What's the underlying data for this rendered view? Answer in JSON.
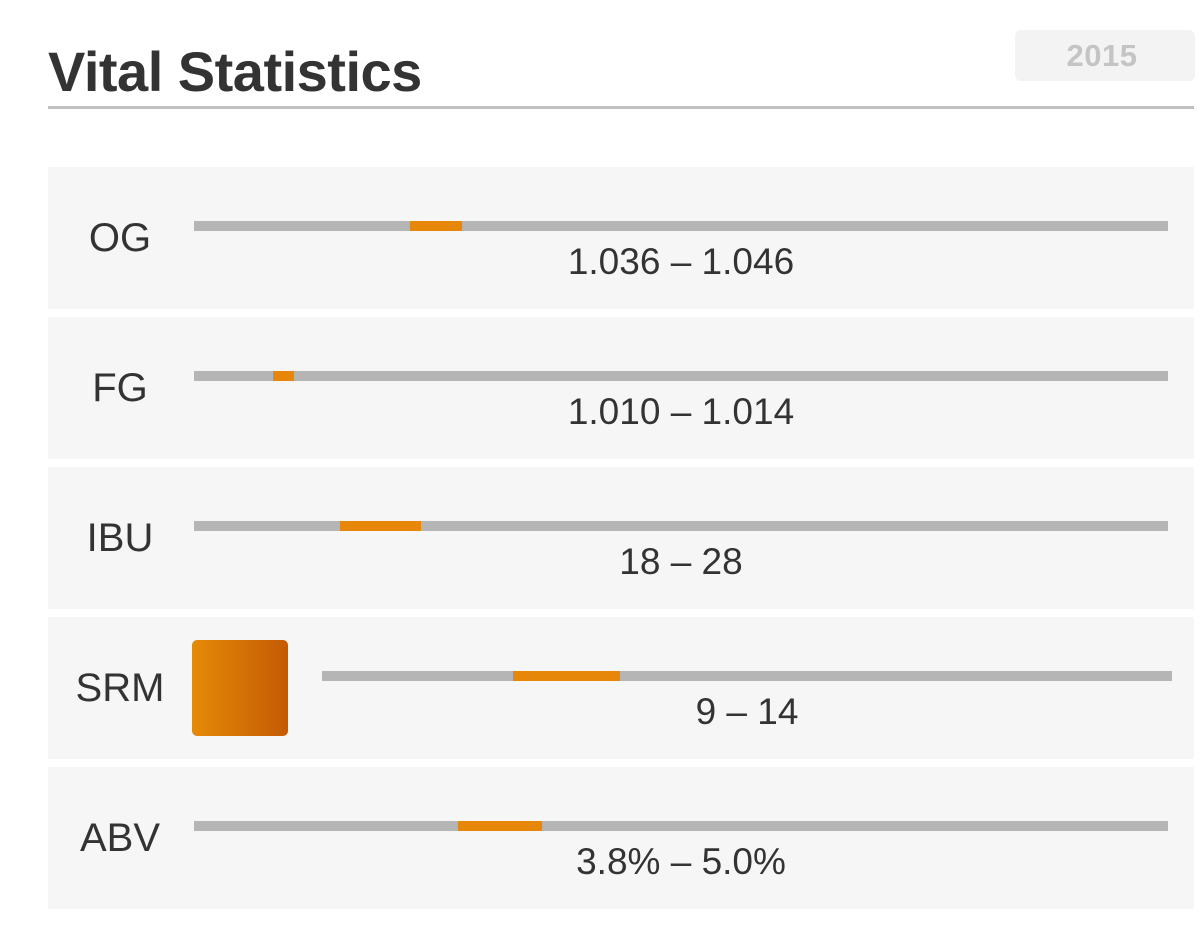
{
  "header": {
    "title": "Vital Statistics",
    "year": "2015"
  },
  "stats": [
    {
      "label": "OG",
      "range_text": "1.036 – 1.046",
      "fill_start_fraction": 0.222,
      "fill_end_fraction": 0.275
    },
    {
      "label": "FG",
      "range_text": "1.010 – 1.014",
      "fill_start_fraction": 0.081,
      "fill_end_fraction": 0.103
    },
    {
      "label": "IBU",
      "range_text": "18 – 28",
      "fill_start_fraction": 0.15,
      "fill_end_fraction": 0.233
    },
    {
      "label": "SRM",
      "range_text": "9 – 14",
      "fill_start_fraction": 0.225,
      "fill_end_fraction": 0.351,
      "swatch_color": "#d9760a"
    },
    {
      "label": "ABV",
      "range_text": "3.8% – 5.0%",
      "fill_start_fraction": 0.271,
      "fill_end_fraction": 0.357
    }
  ],
  "colors": {
    "accent": "#e6870a",
    "track": "#b5b5b5",
    "row_background": "#f6f6f6"
  }
}
